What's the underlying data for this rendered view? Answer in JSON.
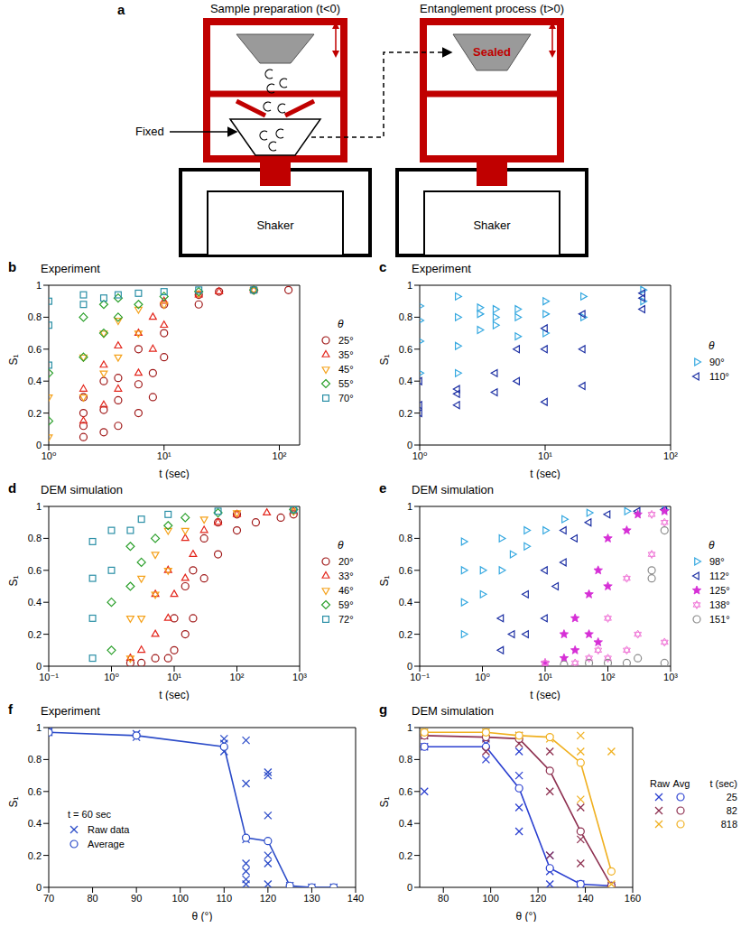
{
  "panel_a": {
    "letter": "a",
    "left_title": "Sample preparation (t<0)",
    "right_title": "Entanglement process (t>0)",
    "fixed_label": "Fixed",
    "sealed_label": "Sealed",
    "shaker_label": "Shaker"
  },
  "chart_data": [
    {
      "panel": "b",
      "title": "Experiment",
      "type": "scatter",
      "x_label": "t (sec)",
      "y_label": "S₁",
      "log": "x",
      "xlim": [
        1,
        150
      ],
      "xticks": [
        {
          "value": 1,
          "label": "10⁰"
        },
        {
          "value": 10,
          "label": "10¹"
        },
        {
          "value": 100,
          "label": "10²"
        }
      ],
      "ylim": [
        0,
        1
      ],
      "yticks": [
        0,
        0.2,
        0.4,
        0.6,
        0.8,
        1
      ],
      "legend": "right",
      "legend_title": "θ",
      "series": [
        {
          "name": "25°",
          "color": "#a01818",
          "marker": "circle",
          "x": [
            2,
            2,
            2,
            2,
            3,
            3,
            3,
            4,
            4,
            4,
            6,
            6,
            6,
            8,
            8,
            10,
            10,
            10,
            20,
            20,
            30,
            60,
            120
          ],
          "values": [
            0.05,
            0.12,
            0.2,
            0.3,
            0.08,
            0.22,
            0.4,
            0.12,
            0.28,
            0.42,
            0.2,
            0.38,
            0.6,
            0.3,
            0.45,
            0.55,
            0.7,
            0.88,
            0.88,
            0.94,
            0.96,
            0.97,
            0.97
          ]
        },
        {
          "name": "35°",
          "color": "#e3261c",
          "marker": "triangle",
          "x": [
            2,
            2,
            3,
            3,
            4,
            4,
            6,
            6,
            8,
            8,
            10,
            10,
            20,
            30,
            60
          ],
          "values": [
            0.15,
            0.35,
            0.25,
            0.5,
            0.35,
            0.62,
            0.45,
            0.7,
            0.6,
            0.8,
            0.75,
            0.9,
            0.94,
            0.96,
            0.97
          ]
        },
        {
          "name": "45°",
          "color": "#f5a21c",
          "marker": "triangle_down",
          "x": [
            1,
            1,
            2,
            2,
            3,
            3,
            4,
            4,
            6,
            6,
            10,
            20,
            60
          ],
          "values": [
            0.05,
            0.3,
            0.3,
            0.55,
            0.45,
            0.7,
            0.55,
            0.78,
            0.7,
            0.85,
            0.88,
            0.95,
            0.97
          ]
        },
        {
          "name": "55°",
          "color": "#2ca02c",
          "marker": "diamond",
          "x": [
            1,
            1,
            2,
            2,
            3,
            3,
            4,
            4,
            6,
            10,
            20,
            60
          ],
          "values": [
            0.15,
            0.45,
            0.55,
            0.8,
            0.7,
            0.88,
            0.8,
            0.92,
            0.88,
            0.93,
            0.96,
            0.97
          ]
        },
        {
          "name": "70°",
          "color": "#2a8fa6",
          "marker": "square",
          "x": [
            1,
            1,
            1,
            2,
            2,
            3,
            4,
            6,
            10,
            20,
            60
          ],
          "values": [
            0.5,
            0.75,
            0.9,
            0.88,
            0.94,
            0.92,
            0.94,
            0.95,
            0.96,
            0.97,
            0.97
          ]
        }
      ]
    },
    {
      "panel": "c",
      "title": "Experiment",
      "type": "scatter",
      "x_label": "t (sec)",
      "y_label": "S₁",
      "log": "x",
      "xlim": [
        1,
        100
      ],
      "xticks": [
        {
          "value": 1,
          "label": "10⁰"
        },
        {
          "value": 10,
          "label": "10¹"
        },
        {
          "value": 100,
          "label": "10²"
        }
      ],
      "ylim": [
        0,
        1
      ],
      "yticks": [
        0,
        0.2,
        0.4,
        0.6,
        0.8,
        1
      ],
      "legend": "right",
      "legend_title": "θ",
      "series": [
        {
          "name": "90°",
          "color": "#35a8e0",
          "marker": "triangle_right",
          "x": [
            1,
            1,
            1,
            1,
            2,
            2,
            2,
            2,
            3,
            3,
            3,
            4,
            4,
            4,
            6,
            6,
            6,
            10,
            10,
            10,
            20,
            20,
            60,
            60
          ],
          "values": [
            0.45,
            0.65,
            0.78,
            0.87,
            0.45,
            0.62,
            0.8,
            0.93,
            0.72,
            0.82,
            0.86,
            0.75,
            0.8,
            0.85,
            0.68,
            0.8,
            0.85,
            0.7,
            0.82,
            0.9,
            0.8,
            0.93,
            0.9,
            0.97
          ]
        },
        {
          "name": "110°",
          "color": "#1c2fa3",
          "marker": "triangle_left",
          "x": [
            1,
            1,
            1,
            2,
            2,
            2,
            4,
            4,
            6,
            6,
            10,
            10,
            10,
            20,
            20,
            20,
            60,
            60,
            60
          ],
          "values": [
            0.2,
            0.25,
            0.4,
            0.25,
            0.32,
            0.35,
            0.33,
            0.45,
            0.4,
            0.6,
            0.27,
            0.6,
            0.73,
            0.37,
            0.6,
            0.82,
            0.85,
            0.92,
            0.95
          ]
        }
      ]
    },
    {
      "panel": "d",
      "title": "DEM simulation",
      "type": "scatter",
      "x_label": "t (sec)",
      "y_label": "S₁",
      "log": "x",
      "xlim": [
        0.1,
        1000
      ],
      "xticks": [
        {
          "value": 0.1,
          "label": "10⁻¹"
        },
        {
          "value": 1,
          "label": "10⁰"
        },
        {
          "value": 10,
          "label": "10¹"
        },
        {
          "value": 100,
          "label": "10²"
        },
        {
          "value": 1000,
          "label": "10³"
        }
      ],
      "ylim": [
        0,
        1
      ],
      "yticks": [
        0,
        0.2,
        0.4,
        0.6,
        0.8,
        1
      ],
      "legend": "right",
      "legend_title": "θ",
      "series": [
        {
          "name": "20°",
          "color": "#a01818",
          "marker": "circle",
          "x": [
            2,
            3,
            5,
            8,
            10,
            10,
            15,
            15,
            20,
            20,
            30,
            30,
            50,
            50,
            100,
            100,
            200,
            500,
            800
          ],
          "values": [
            0.02,
            0.02,
            0.05,
            0.05,
            0.1,
            0.3,
            0.2,
            0.5,
            0.3,
            0.6,
            0.55,
            0.8,
            0.7,
            0.9,
            0.85,
            0.95,
            0.9,
            0.93,
            0.95
          ]
        },
        {
          "name": "33°",
          "color": "#e3261c",
          "marker": "triangle",
          "x": [
            2,
            3,
            5,
            5,
            8,
            8,
            10,
            15,
            15,
            20,
            30,
            50,
            100,
            300,
            800
          ],
          "values": [
            0.05,
            0.1,
            0.2,
            0.45,
            0.3,
            0.6,
            0.45,
            0.55,
            0.8,
            0.7,
            0.85,
            0.9,
            0.95,
            0.96,
            0.97
          ]
        },
        {
          "name": "46°",
          "color": "#f5a21c",
          "marker": "triangle_down",
          "x": [
            2,
            2,
            3,
            3,
            5,
            5,
            8,
            8,
            15,
            30,
            100,
            800
          ],
          "values": [
            0.05,
            0.3,
            0.3,
            0.55,
            0.45,
            0.7,
            0.6,
            0.85,
            0.85,
            0.92,
            0.96,
            0.97
          ]
        },
        {
          "name": "59°",
          "color": "#2ca02c",
          "marker": "diamond",
          "x": [
            1,
            1,
            2,
            2,
            3,
            5,
            8,
            15,
            50,
            800
          ],
          "values": [
            0.1,
            0.4,
            0.5,
            0.75,
            0.65,
            0.8,
            0.88,
            0.93,
            0.96,
            0.98
          ]
        },
        {
          "name": "72°",
          "color": "#2a8fa6",
          "marker": "square",
          "x": [
            0.5,
            0.5,
            0.5,
            0.5,
            1,
            1,
            2,
            3,
            8,
            50,
            800
          ],
          "values": [
            0.05,
            0.3,
            0.55,
            0.78,
            0.6,
            0.85,
            0.85,
            0.92,
            0.95,
            0.97,
            0.98
          ]
        }
      ]
    },
    {
      "panel": "e",
      "title": "DEM simulation",
      "type": "scatter",
      "x_label": "t (sec)",
      "y_label": "S₁",
      "log": "x",
      "xlim": [
        0.1,
        1000
      ],
      "xticks": [
        {
          "value": 0.1,
          "label": "10⁻¹"
        },
        {
          "value": 1,
          "label": "10⁰"
        },
        {
          "value": 10,
          "label": "10¹"
        },
        {
          "value": 100,
          "label": "10²"
        },
        {
          "value": 1000,
          "label": "10³"
        }
      ],
      "ylim": [
        0,
        1
      ],
      "yticks": [
        0,
        0.2,
        0.4,
        0.6,
        0.8,
        1
      ],
      "legend": "right",
      "legend_title": "θ",
      "series": [
        {
          "name": "98°",
          "color": "#35a8e0",
          "marker": "triangle_right",
          "x": [
            0.5,
            0.5,
            0.5,
            0.5,
            1,
            1,
            2,
            2,
            3,
            5,
            5,
            10,
            20,
            50,
            200,
            800
          ],
          "values": [
            0.2,
            0.4,
            0.6,
            0.78,
            0.45,
            0.6,
            0.6,
            0.8,
            0.7,
            0.75,
            0.85,
            0.85,
            0.92,
            0.96,
            0.97,
            0.98
          ]
        },
        {
          "name": "112°",
          "color": "#1c2fa3",
          "marker": "triangle_left",
          "x": [
            2,
            2,
            3,
            5,
            5,
            10,
            10,
            15,
            20,
            20,
            30,
            50,
            100,
            300,
            800
          ],
          "values": [
            0.1,
            0.3,
            0.2,
            0.2,
            0.45,
            0.3,
            0.6,
            0.5,
            0.65,
            0.85,
            0.8,
            0.9,
            0.95,
            0.97,
            0.98
          ]
        },
        {
          "name": "125°",
          "color": "#d62fd6",
          "marker": "star",
          "x": [
            10,
            20,
            20,
            30,
            30,
            50,
            50,
            70,
            70,
            100,
            100,
            200,
            300,
            800
          ],
          "values": [
            0.02,
            0.05,
            0.2,
            0.1,
            0.3,
            0.2,
            0.45,
            0.15,
            0.6,
            0.5,
            0.8,
            0.85,
            0.95,
            0.97
          ]
        },
        {
          "name": "138°",
          "color": "#f07ad8",
          "marker": "hexagram",
          "x": [
            10,
            30,
            50,
            70,
            100,
            100,
            200,
            200,
            300,
            500,
            500,
            800,
            800
          ],
          "values": [
            0.02,
            0.02,
            0.05,
            0.1,
            0.05,
            0.3,
            0.1,
            0.55,
            0.2,
            0.7,
            0.95,
            0.15,
            0.9
          ]
        },
        {
          "name": "151°",
          "color": "#8c8c8c",
          "marker": "circle",
          "x": [
            20,
            50,
            100,
            200,
            300,
            500,
            500,
            800,
            800
          ],
          "values": [
            0.01,
            0.02,
            0.02,
            0.02,
            0.05,
            0.55,
            0.6,
            0.02,
            0.85
          ]
        }
      ]
    },
    {
      "panel": "f",
      "title": "Experiment",
      "type": "scatter",
      "x_label": "θ (°)",
      "y_label": "S₁",
      "xlim": [
        70,
        140
      ],
      "xticks": [
        70,
        80,
        90,
        100,
        110,
        120,
        130,
        140
      ],
      "ylim": [
        0,
        1
      ],
      "yticks": [
        0,
        0.2,
        0.4,
        0.6,
        0.8,
        1
      ],
      "legend": "lower left",
      "annotation": "t = 60 sec",
      "series": [
        {
          "name": "Raw data",
          "type": "scatter",
          "marker": "x",
          "color": "#2b4bc8",
          "x": [
            70,
            70,
            90,
            90,
            110,
            110,
            110,
            115,
            115,
            115,
            115,
            115,
            115,
            115,
            120,
            120,
            120,
            120,
            120,
            120,
            125,
            130,
            135
          ],
          "values": [
            0.97,
            0.98,
            0.94,
            0.96,
            0.85,
            0.9,
            0.93,
            0.92,
            0.65,
            0.3,
            0.15,
            0.1,
            0.05,
            0.02,
            0.7,
            0.72,
            0.45,
            0.2,
            0.15,
            0.02,
            0.01,
            0,
            0
          ]
        },
        {
          "name": "Average",
          "type": "line",
          "marker": "circle",
          "color": "#2b4bc8",
          "x": [
            70,
            90,
            110,
            115,
            120,
            125,
            130,
            135
          ],
          "values": [
            0.97,
            0.95,
            0.88,
            0.31,
            0.29,
            0.01,
            0,
            0
          ]
        }
      ]
    },
    {
      "panel": "g",
      "title": "DEM simulation",
      "type": "scatter",
      "x_label": "θ (°)",
      "y_label": "S₁",
      "xlim": [
        70,
        160
      ],
      "xticks": [
        80,
        100,
        120,
        140,
        160
      ],
      "ylim": [
        0,
        1
      ],
      "yticks": [
        0,
        0.2,
        0.4,
        0.6,
        0.8,
        1
      ],
      "legend": "right",
      "legend_header": [
        "Raw",
        "Avg",
        "t (sec)"
      ],
      "series": [
        {
          "name": "25",
          "color": "#2a3fd0",
          "raw": {
            "x": [
              72,
              72,
              72,
              98,
              98,
              112,
              112,
              112,
              112,
              125,
              125,
              125,
              138,
              151
            ],
            "values": [
              0.6,
              0.88,
              0.95,
              0.8,
              0.9,
              0.35,
              0.5,
              0.7,
              0.85,
              0.02,
              0.1,
              0.2,
              0.02,
              0
            ]
          },
          "x": [
            72,
            98,
            112,
            125,
            138,
            151
          ],
          "values": [
            0.88,
            0.88,
            0.62,
            0.12,
            0.02,
            0.01
          ]
        },
        {
          "name": "82",
          "color": "#8e3050",
          "raw": {
            "x": [
              72,
              98,
              98,
              112,
              112,
              125,
              125,
              125,
              138,
              138,
              138,
              151
            ],
            "values": [
              0.95,
              0.85,
              0.93,
              0.9,
              0.95,
              0.2,
              0.6,
              0.85,
              0.15,
              0.3,
              0.5,
              0.01
            ]
          },
          "x": [
            72,
            98,
            112,
            125,
            138,
            151
          ],
          "values": [
            0.95,
            0.94,
            0.93,
            0.73,
            0.35,
            0.01
          ]
        },
        {
          "name": "818",
          "color": "#f0b020",
          "raw": {
            "x": [
              72,
              98,
              112,
              125,
              138,
              138,
              138,
              151,
              151
            ],
            "values": [
              0.97,
              0.97,
              0.95,
              0.93,
              0.55,
              0.85,
              0.95,
              0.02,
              0.85
            ]
          },
          "x": [
            72,
            98,
            112,
            125,
            138,
            151
          ],
          "values": [
            0.97,
            0.97,
            0.95,
            0.94,
            0.78,
            0.1
          ]
        }
      ]
    }
  ]
}
